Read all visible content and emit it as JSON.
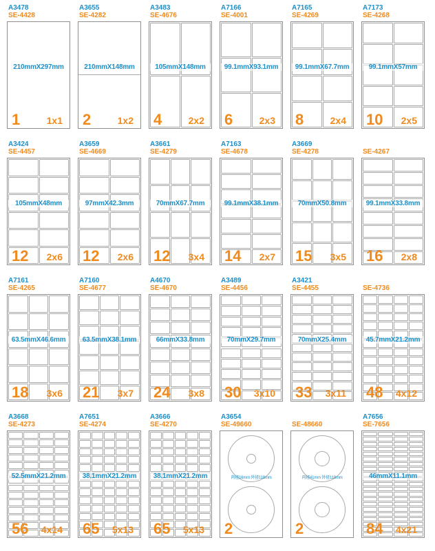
{
  "items": [
    {
      "code": "A3478",
      "se": "SE-4428",
      "size": "210mmX297mm",
      "count": "1",
      "layout": "1x1",
      "cols": 1,
      "rows": 1
    },
    {
      "code": "A3655",
      "se": "SE-4282",
      "size": "210mmX148mm",
      "count": "2",
      "layout": "1x2",
      "cols": 1,
      "rows": 2
    },
    {
      "code": "A3483",
      "se": "SE-4676",
      "size": "105mmX148mm",
      "count": "4",
      "layout": "2x2",
      "cols": 2,
      "rows": 2
    },
    {
      "code": "A7166",
      "se": "SE-4001",
      "size": "99.1mmX93.1mm",
      "count": "6",
      "layout": "2x3",
      "cols": 2,
      "rows": 3
    },
    {
      "code": "A7165",
      "se": "SE-4269",
      "size": "99.1mmX67.7mm",
      "count": "8",
      "layout": "2x4",
      "cols": 2,
      "rows": 4
    },
    {
      "code": "A7173",
      "se": "SE-4268",
      "size": "99.1mmX57mm",
      "count": "10",
      "layout": "2x5",
      "cols": 2,
      "rows": 5
    },
    {
      "code": "A3424",
      "se": "SE-4457",
      "size": "105mmX48mm",
      "count": "12",
      "layout": "2x6",
      "cols": 2,
      "rows": 6
    },
    {
      "code": "A3659",
      "se": "SE-4669",
      "size": "97mmX42.3mm",
      "count": "12",
      "layout": "2x6",
      "cols": 2,
      "rows": 6
    },
    {
      "code": "A3661",
      "se": "SE-4279",
      "size": "70mmX67.7mm",
      "count": "12",
      "layout": "3x4",
      "cols": 3,
      "rows": 4
    },
    {
      "code": "A7163",
      "se": "SE-4678",
      "size": "99.1mmX38.1mm",
      "count": "14",
      "layout": "2x7",
      "cols": 2,
      "rows": 7
    },
    {
      "code": "A3669",
      "se": "SE-4278",
      "size": "70mmX50.8mm",
      "count": "15",
      "layout": "3x5",
      "cols": 3,
      "rows": 5
    },
    {
      "code": "",
      "se": "SE-4267",
      "size": "99.1mmX33.8mm",
      "count": "16",
      "layout": "2x8",
      "cols": 2,
      "rows": 8
    },
    {
      "code": "A7161",
      "se": "SE-4265",
      "size": "63.5mmX46.6mm",
      "count": "18",
      "layout": "3x6",
      "cols": 3,
      "rows": 6
    },
    {
      "code": "A7160",
      "se": "SE-4677",
      "size": "63.5mmX38.1mm",
      "count": "21",
      "layout": "3x7",
      "cols": 3,
      "rows": 7
    },
    {
      "code": "A4670",
      "se": "SE-4670",
      "size": "66mmX33.8mm",
      "count": "24",
      "layout": "3x8",
      "cols": 3,
      "rows": 8
    },
    {
      "code": "A3489",
      "se": "SE-4456",
      "size": "70mmX29.7mm",
      "count": "30",
      "layout": "3x10",
      "cols": 3,
      "rows": 10
    },
    {
      "code": "A3421",
      "se": "SE-4455",
      "size": "70mmX25.4mm",
      "count": "33",
      "layout": "3x11",
      "cols": 3,
      "rows": 11
    },
    {
      "code": "",
      "se": "SE-4736",
      "size": "45.7mmX21.2mm",
      "count": "48",
      "layout": "4x12",
      "cols": 4,
      "rows": 12
    },
    {
      "code": "A3668",
      "se": "SE-4273",
      "size": "52.5mmX21.2mm",
      "count": "56",
      "layout": "4x14",
      "cols": 4,
      "rows": 14
    },
    {
      "code": "A7651",
      "se": "SE-4274",
      "size": "38.1mmX21.2mm",
      "count": "65",
      "layout": "5x13",
      "cols": 5,
      "rows": 13
    },
    {
      "code": "A3666",
      "se": "SE-4270",
      "size": "38.1mmX21.2mm",
      "count": "65",
      "layout": "5x13",
      "cols": 5,
      "rows": 13
    },
    {
      "code": "A3654",
      "se": "SE-49660",
      "size": "内径16mm 外径118mm",
      "count": "2",
      "layout": "",
      "cd": true
    },
    {
      "code": "",
      "se": "SE-48660",
      "size": "内径41mm 外径118mm",
      "count": "2",
      "layout": "",
      "cd": true
    },
    {
      "code": "A7656",
      "se": "SE-7656",
      "size": "46mmX11.1mm",
      "count": "84",
      "layout": "4x21",
      "cols": 4,
      "rows": 21
    }
  ]
}
